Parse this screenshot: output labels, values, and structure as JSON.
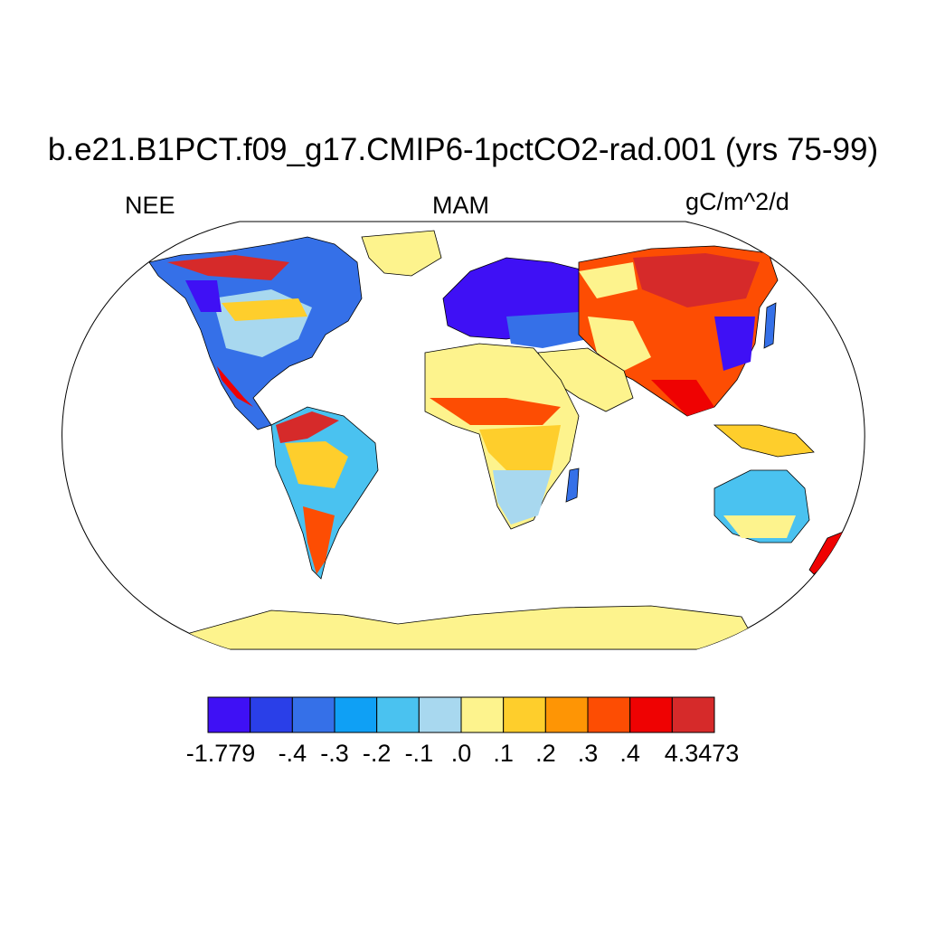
{
  "title": "b.e21.B1PCT.f09_g17.CMIP6-1pctCO2-rad.001 (yrs 75-99)",
  "left_label": "NEE",
  "center_label": "MAM",
  "right_label": "gC/m^2/d",
  "colorbar": {
    "colors": [
      "#3f10f5",
      "#2a3fe8",
      "#3570e8",
      "#0fa0f5",
      "#4ac2f0",
      "#a8d8ef",
      "#fdf38d",
      "#fece2c",
      "#fe9505",
      "#fd4d03",
      "#ef0202",
      "#d62a2a"
    ],
    "labels": [
      "-1.779",
      "-.4",
      "-.3",
      "-.2",
      "-.1",
      ".0",
      ".1",
      ".2",
      ".3",
      ".4",
      "4.3473"
    ]
  },
  "map": {
    "projection": "Robinson",
    "ocean_color": "#ffffff",
    "coastline_color": "#000000"
  }
}
